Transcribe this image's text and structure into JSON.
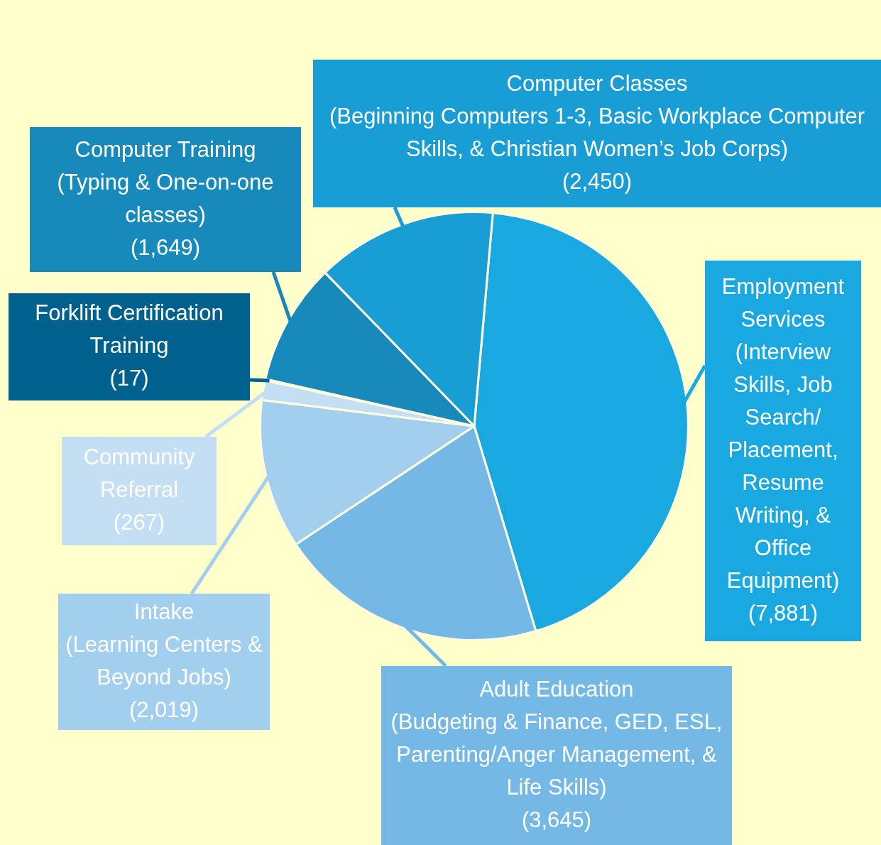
{
  "chart_data": {
    "type": "pie",
    "categories": [
      "Employment Services (Interview Skills, Job Search/ Placement, Resume Writing, & Office Equipment)",
      "Adult Education\n(Budgeting & Finance, GED, ESL, Parenting/Anger Management, & Life Skills)",
      "Intake\n(Learning Centers & Beyond Jobs)",
      "Community Referral",
      "Forklift Certification Training",
      "Computer Training\n(Typing & One-on-one classes)",
      "Computer Classes\n(Beginning Computers 1-3, Basic Workplace Computer Skills, & Christian Women’s Job Corps)"
    ],
    "values": [
      7881,
      3645,
      2019,
      267,
      17,
      1649,
      2450
    ],
    "value_labels": [
      "(7,881)",
      "(3,645)",
      "(2,019)",
      "(267)",
      "(17)",
      "(1,649)",
      "(2,450)"
    ],
    "colors": [
      "#1aa8e0",
      "#74b9e6",
      "#a3cfee",
      "#c4dff4",
      "#00608e",
      "#1889bb",
      "#189dd5"
    ],
    "legend": false
  }
}
